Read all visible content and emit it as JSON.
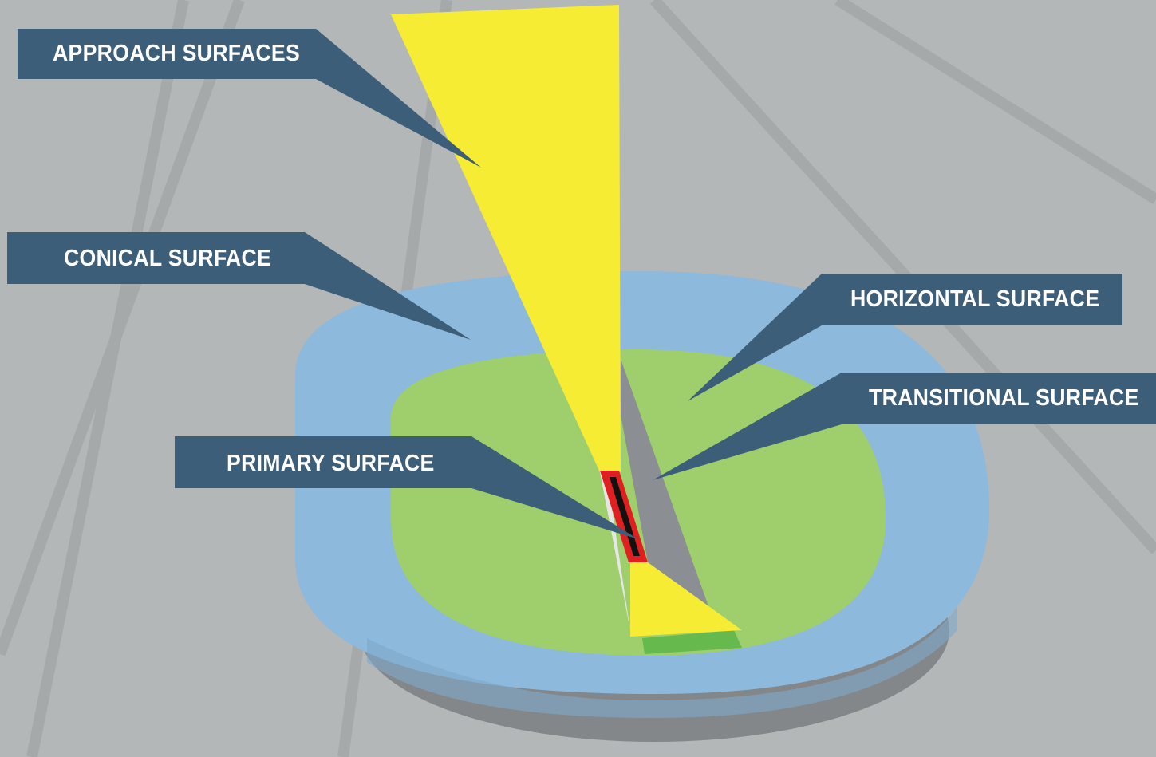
{
  "labels": {
    "approach": "APPROACH SURFACES",
    "conical": "CONICAL SURFACE",
    "horizontal": "HORIZONTAL SURFACE",
    "transitional": "TRANSITIONAL SURFACE",
    "primary": "PRIMARY SURFACE"
  },
  "colors": {
    "background": "#b3b7b8",
    "background_lines": "#a4a8a9",
    "conical_surface": "#8cb9dc",
    "horizontal_surface": "#9fcf6c",
    "approach_surfaces": "#f6ec33",
    "transitional_surface": "#8b8e92",
    "primary_surface": "#e02020",
    "runway": "#111111",
    "base_shadow": "#84878a",
    "callout": "#3c5e78"
  }
}
